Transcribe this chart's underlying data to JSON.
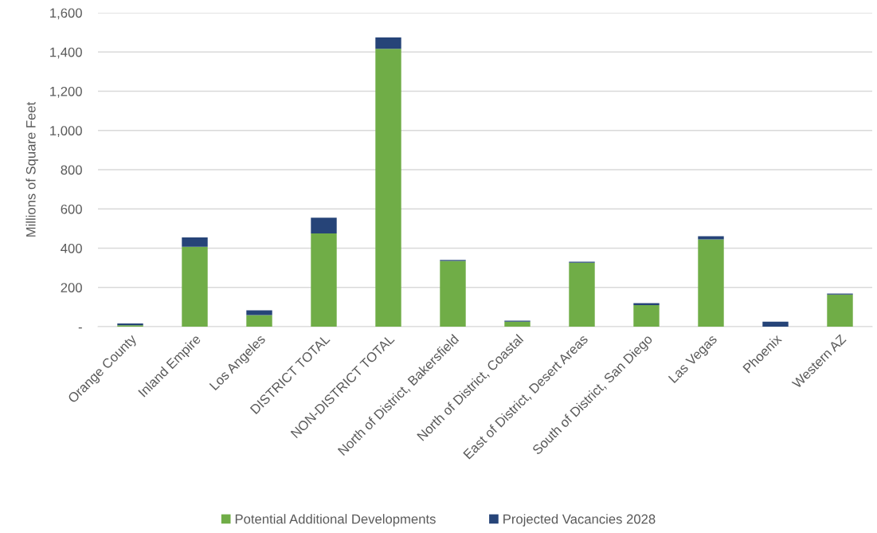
{
  "chart_data": {
    "type": "bar",
    "stacked": true,
    "ylabel": "Millions of Square Feet",
    "categories": [
      "Orange County",
      "Inland Empire",
      "Los Angeles",
      "DISTRICT TOTAL",
      "NON-DISTRICT TOTAL",
      "North of District, Bakersfield",
      "North of District, Coastal",
      "East of District, Desert Areas",
      "South of District, San Diego",
      "Las Vegas",
      "Phoenix",
      "Western AZ"
    ],
    "series": [
      {
        "name": "Potential Additional Developments",
        "color": "#70ad47",
        "values": [
          7,
          407,
          59,
          475,
          1416,
          335,
          25,
          326,
          110,
          445,
          0,
          163
        ]
      },
      {
        "name": "Projected Vacancies 2028",
        "color": "#264478",
        "values": [
          9,
          48,
          24,
          80,
          58,
          5,
          5,
          5,
          10,
          16,
          25,
          6
        ]
      }
    ],
    "ylim": [
      0,
      1600
    ],
    "yticks": [
      {
        "value": 0,
        "label": "-"
      },
      200,
      400,
      600,
      800,
      {
        "value": 1000,
        "label": "1,000"
      },
      {
        "value": 1200,
        "label": "1,200"
      },
      {
        "value": 1400,
        "label": "1,400"
      },
      {
        "value": 1600,
        "label": "1,600"
      }
    ],
    "grid": "y",
    "legend": "bottom"
  }
}
